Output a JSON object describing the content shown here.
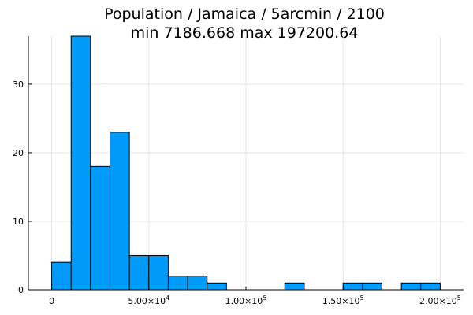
{
  "chart_data": {
    "type": "bar",
    "title": "Population / Jamaica / 5arcmin / 2100",
    "subtitle": "min 7186.668  max 197200.64",
    "bar_color": "#009af9",
    "grid": true,
    "bin_width": 10000,
    "bins": [
      {
        "x0": 0,
        "x1": 10000,
        "count": 4
      },
      {
        "x0": 10000,
        "x1": 20000,
        "count": 37
      },
      {
        "x0": 20000,
        "x1": 30000,
        "count": 18
      },
      {
        "x0": 30000,
        "x1": 40000,
        "count": 23
      },
      {
        "x0": 40000,
        "x1": 50000,
        "count": 5
      },
      {
        "x0": 50000,
        "x1": 60000,
        "count": 5
      },
      {
        "x0": 60000,
        "x1": 70000,
        "count": 2
      },
      {
        "x0": 70000,
        "x1": 80000,
        "count": 2
      },
      {
        "x0": 80000,
        "x1": 90000,
        "count": 1
      },
      {
        "x0": 90000,
        "x1": 100000,
        "count": 0
      },
      {
        "x0": 100000,
        "x1": 110000,
        "count": 0
      },
      {
        "x0": 110000,
        "x1": 120000,
        "count": 0
      },
      {
        "x0": 120000,
        "x1": 130000,
        "count": 1
      },
      {
        "x0": 130000,
        "x1": 140000,
        "count": 0
      },
      {
        "x0": 140000,
        "x1": 150000,
        "count": 0
      },
      {
        "x0": 150000,
        "x1": 160000,
        "count": 1
      },
      {
        "x0": 160000,
        "x1": 170000,
        "count": 1
      },
      {
        "x0": 170000,
        "x1": 180000,
        "count": 0
      },
      {
        "x0": 180000,
        "x1": 190000,
        "count": 1
      },
      {
        "x0": 190000,
        "x1": 200000,
        "count": 1
      }
    ],
    "xlim": [
      -12000,
      212000
    ],
    "ylim": [
      0,
      37
    ],
    "x_ticks": [
      {
        "value": 0,
        "label": "0"
      },
      {
        "value": 50000,
        "label": "5.00×10",
        "exp": "4"
      },
      {
        "value": 100000,
        "label": "1.00×10",
        "exp": "5"
      },
      {
        "value": 150000,
        "label": "1.50×10",
        "exp": "5"
      },
      {
        "value": 200000,
        "label": "2.00×10",
        "exp": "5"
      }
    ],
    "y_ticks": [
      {
        "value": 0,
        "label": "0"
      },
      {
        "value": 10,
        "label": "10"
      },
      {
        "value": 20,
        "label": "20"
      },
      {
        "value": 30,
        "label": "30"
      }
    ]
  }
}
